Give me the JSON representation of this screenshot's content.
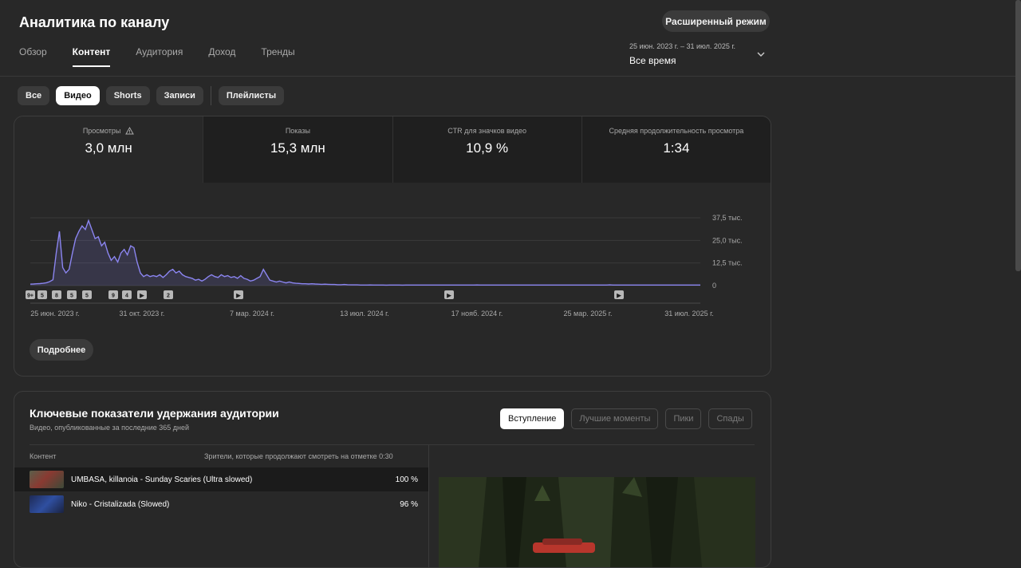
{
  "header": {
    "title": "Аналитика по каналу",
    "advanced_mode": "Расширенный режим",
    "tabs": [
      "Обзор",
      "Контент",
      "Аудитория",
      "Доход",
      "Тренды"
    ],
    "active_tab": "Контент",
    "date_range": {
      "range": "25 июн. 2023 г. – 31 июл. 2025 г.",
      "period": "Все время"
    }
  },
  "filters": {
    "chips": [
      "Все",
      "Видео",
      "Shorts",
      "Записи"
    ],
    "playlists": "Плейлисты",
    "active": "Видео"
  },
  "metrics": [
    {
      "label": "Просмотры",
      "value": "3,0 млн",
      "warning_icon": true
    },
    {
      "label": "Показы",
      "value": "15,3 млн"
    },
    {
      "label": "CTR для значков видео",
      "value": "10,9 %"
    },
    {
      "label": "Средняя продолжительность просмотра",
      "value": "1:34"
    }
  ],
  "chart_data": {
    "type": "line",
    "series": [
      {
        "values": [
          0.8,
          0.9,
          1.0,
          1.1,
          1.3,
          1.6,
          2.2,
          3.2,
          18.0,
          30.0,
          10.0,
          7.0,
          9.0,
          18.0,
          26.0,
          30.0,
          33.0,
          31.0,
          36.0,
          31.0,
          26.0,
          27.0,
          22.0,
          24.0,
          18.0,
          14.0,
          16.0,
          13.0,
          18.0,
          20.0,
          17.0,
          22.0,
          21.0,
          13.0,
          7.0,
          5.0,
          6.0,
          5.0,
          5.5,
          5.0,
          6.0,
          4.5,
          6.0,
          8.0,
          9.0,
          7.0,
          8.0,
          6.0,
          5.0,
          4.5,
          4.0,
          3.0,
          3.5,
          2.5,
          3.5,
          5.0,
          6.0,
          5.0,
          4.5,
          6.0,
          5.0,
          5.5,
          4.5,
          5.0,
          4.0,
          5.5,
          4.0,
          3.5,
          2.5,
          3.0,
          4.0,
          5.0,
          9.0,
          6.0,
          3.0,
          2.5,
          2.0,
          2.5,
          2.0,
          1.5,
          2.0,
          1.5,
          1.3,
          1.2,
          1.0,
          1.0,
          0.9,
          1.0,
          0.9,
          0.8,
          0.7,
          0.8,
          0.7,
          0.6,
          0.6,
          0.5,
          0.5,
          0.6,
          0.5,
          0.4,
          0.4,
          0.4,
          0.3,
          0.3,
          0.3,
          0.35,
          0.3,
          0.3,
          0.3,
          0.3,
          0.25,
          0.3,
          0.3,
          0.3,
          0.3,
          0.25,
          0.3,
          0.3,
          0.3,
          0.3,
          0.3,
          0.3,
          0.3,
          0.3,
          0.3,
          0.3,
          0.3,
          0.3,
          0.3,
          0.3,
          0.3,
          0.3,
          0.3,
          0.3,
          0.3,
          0.3,
          0.3,
          0.3,
          0.35,
          0.3,
          0.3,
          0.3,
          0.3,
          0.3,
          0.3,
          0.3,
          0.3,
          0.3,
          0.3,
          0.3,
          0.3,
          0.3,
          0.3,
          0.3,
          0.3,
          0.3,
          0.3,
          0.3,
          0.3,
          0.3,
          0.3,
          0.3,
          0.3,
          0.3,
          0.3,
          0.3,
          0.3,
          0.3,
          0.3,
          0.3,
          0.3,
          0.3,
          0.3,
          0.3,
          0.3,
          0.3,
          0.3,
          0.3,
          0.3,
          0.4,
          0.3,
          0.3,
          0.3,
          0.3,
          0.3,
          0.3,
          0.3,
          0.3,
          0.3,
          0.3,
          0.3,
          0.3,
          0.3,
          0.3,
          0.3,
          0.3,
          0.3,
          0.3,
          0.3,
          0.3,
          0.3,
          0.3,
          0.3,
          0.3,
          0.3,
          0.3,
          0.3,
          0.3
        ]
      }
    ],
    "y_ticks": [
      "0",
      "12,5 тыс.",
      "25,0 тыс.",
      "37,5 тыс."
    ],
    "y_tick_values": [
      0,
      12.5,
      25,
      37.5
    ],
    "ylim": [
      0,
      37.5
    ],
    "x_ticks": [
      "25 июн. 2023 г.",
      "31 окт. 2023 г.",
      "7 мар. 2024 г.",
      "13 июл. 2024 г.",
      "17 нояб. 2024 г.",
      "25 мар. 2025 г.",
      "31 июл. 2025 г."
    ],
    "markers": [
      "9+",
      "5",
      "8",
      "5",
      "5",
      "9",
      "4",
      "▶",
      "2",
      "▶",
      "▶",
      "▶"
    ],
    "grid": true,
    "line_color": "#8b85f0"
  },
  "more_button": "Подробнее",
  "retention": {
    "title": "Ключевые показатели удержания аудитории",
    "subtitle": "Видео, опубликованные за последние 365 дней",
    "tabs": [
      "Вступление",
      "Лучшие моменты",
      "Пики",
      "Спады"
    ],
    "active_tab": "Вступление",
    "col_content": "Контент",
    "col_viewers": "Зрители, которые продолжают смотреть на отметке 0:30",
    "rows": [
      {
        "title": "UMBASA, killanoia - Sunday Scaries (Ultra slowed)",
        "pct": "100 %"
      },
      {
        "title": "Niko - Cristalizada (Slowed)",
        "pct": "96 %"
      }
    ]
  },
  "colors": {
    "accent": "#8b85f0",
    "background": "#282828"
  }
}
